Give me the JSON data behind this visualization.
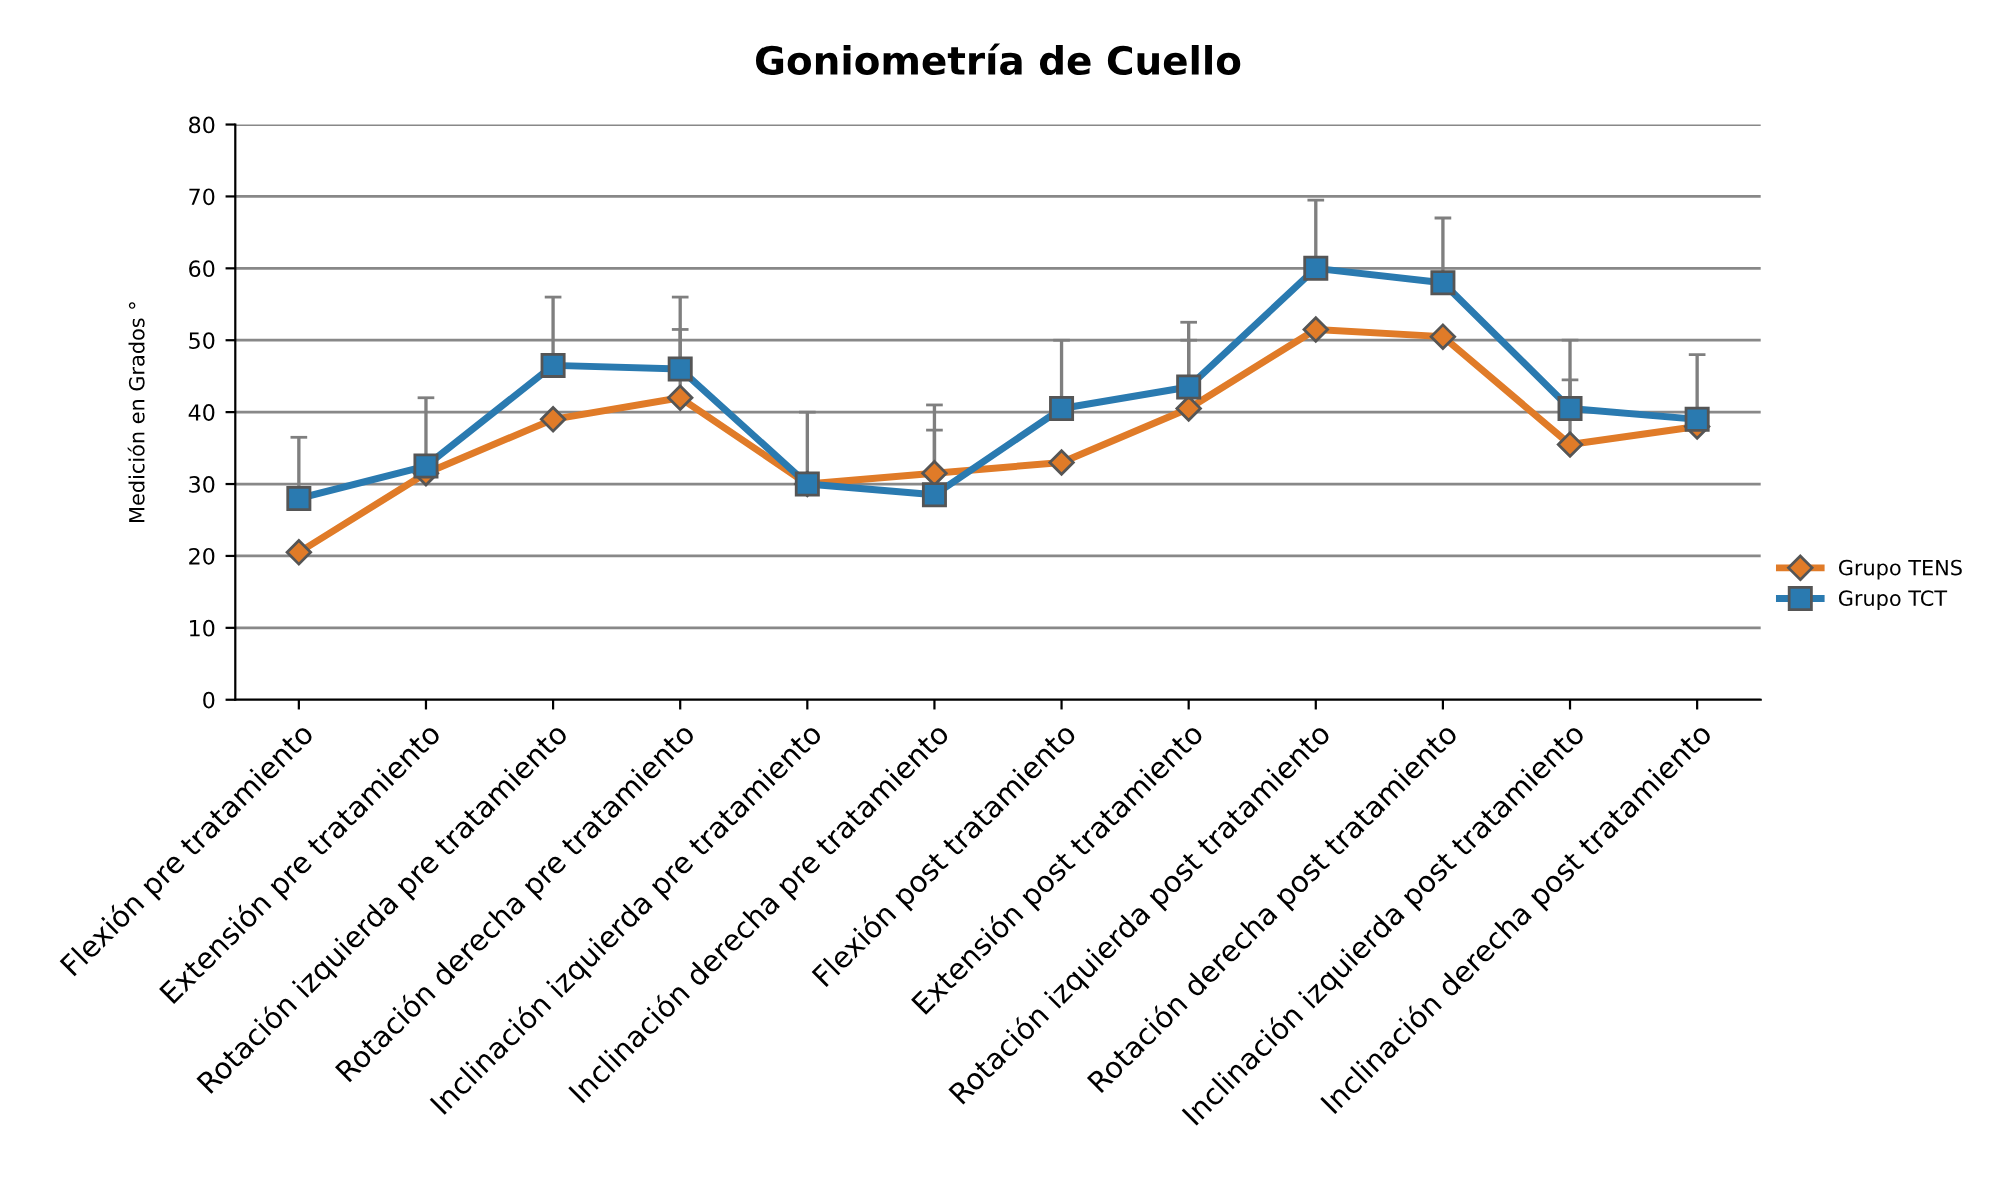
{
  "chart_data": {
    "type": "line",
    "title": "Goniometría de Cuello",
    "ylabel": "Medición en Grados °",
    "categories": [
      "Flexión pre tratamiento",
      "Extensión pre tratamiento",
      "Rotación izquierda pre tratamiento",
      "Rotación derecha pre tratamiento",
      "Inclinación izquierda pre tratamiento",
      "Inclinación derecha pre tratamiento",
      "Flexión post tratamiento",
      "Extensión post tratamiento",
      "Rotación izquierda post tratamiento",
      "Rotación derecha post tratamiento",
      "Inclinación izquierda post tratamiento",
      "Inclinación derecha post tratamiento"
    ],
    "series": [
      {
        "name": "Grupo TENS",
        "color": "#e07b28",
        "marker": "diamond",
        "values": [
          20.5,
          31.5,
          39,
          42,
          30,
          31.5,
          33,
          40.5,
          51.5,
          50.5,
          35.5,
          38
        ],
        "errors": [
          null,
          null,
          null,
          [
            42,
            51.5
          ],
          null,
          [
            31.5,
            41
          ],
          null,
          [
            40.5,
            50
          ],
          null,
          null,
          [
            35.5,
            44.5
          ],
          null
        ]
      },
      {
        "name": "Grupo TCT",
        "color": "#2a7ab0",
        "marker": "square",
        "values": [
          28,
          32.5,
          46.5,
          46,
          30,
          28.5,
          40.5,
          43.5,
          60,
          58,
          40.5,
          39
        ],
        "errors": [
          [
            28,
            36.5
          ],
          [
            32.5,
            42
          ],
          [
            46.5,
            56
          ],
          [
            46,
            56
          ],
          [
            30,
            40
          ],
          [
            28.5,
            37.5
          ],
          [
            40.5,
            50
          ],
          [
            43.5,
            52.5
          ],
          [
            60,
            69.5
          ],
          [
            58,
            67
          ],
          [
            40.5,
            50
          ],
          [
            39,
            48
          ]
        ]
      }
    ],
    "ylim": [
      0,
      80
    ],
    "yticks": [
      0,
      10,
      20,
      30,
      40,
      50,
      60,
      70,
      80
    ],
    "grid": "y",
    "legend": "right",
    "line_style": "solid"
  }
}
